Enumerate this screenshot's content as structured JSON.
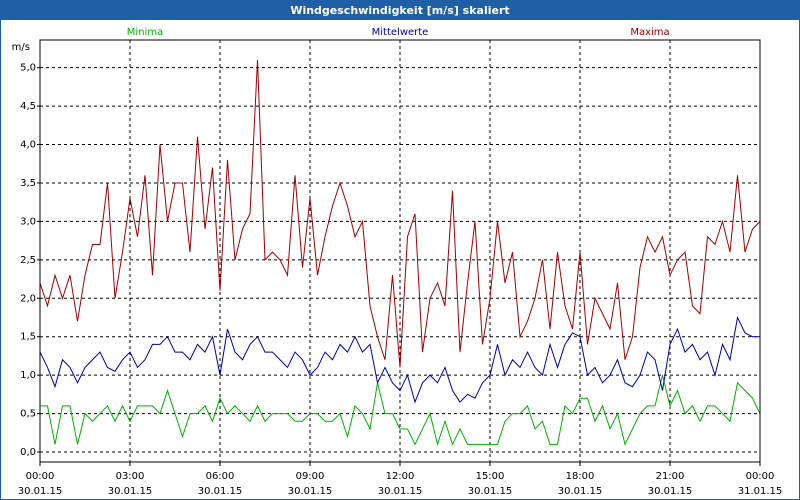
{
  "chart_data": {
    "type": "line",
    "title": "Windgeschwindigkeit [m/s] skaliert",
    "y_label": "m/s",
    "x": [
      0,
      0.25,
      0.5,
      0.75,
      1,
      1.25,
      1.5,
      1.75,
      2,
      2.25,
      2.5,
      2.75,
      3,
      3.25,
      3.5,
      3.75,
      4,
      4.25,
      4.5,
      4.75,
      5,
      5.25,
      5.5,
      5.75,
      6,
      6.25,
      6.5,
      6.75,
      7,
      7.25,
      7.5,
      7.75,
      8,
      8.25,
      8.5,
      8.75,
      9,
      9.25,
      9.5,
      9.75,
      10,
      10.25,
      10.5,
      10.75,
      11,
      11.25,
      11.5,
      11.75,
      12,
      12.25,
      12.5,
      12.75,
      13,
      13.25,
      13.5,
      13.75,
      14,
      14.25,
      14.5,
      14.75,
      15,
      15.25,
      15.5,
      15.75,
      16,
      16.25,
      16.5,
      16.75,
      17,
      17.25,
      17.5,
      17.75,
      18,
      18.25,
      18.5,
      18.75,
      19,
      19.25,
      19.5,
      19.75,
      20,
      20.25,
      20.5,
      20.75,
      21,
      21.25,
      21.5,
      21.75,
      22,
      22.25,
      22.5,
      22.75,
      23,
      23.25,
      23.5,
      23.75,
      24
    ],
    "series": [
      {
        "name": "Minima",
        "color": "#00b000",
        "values": [
          0.6,
          0.6,
          0.1,
          0.6,
          0.6,
          0.1,
          0.5,
          0.4,
          0.5,
          0.6,
          0.4,
          0.6,
          0.4,
          0.6,
          0.6,
          0.6,
          0.5,
          0.8,
          0.5,
          0.2,
          0.5,
          0.5,
          0.6,
          0.4,
          0.7,
          0.5,
          0.6,
          0.5,
          0.4,
          0.6,
          0.4,
          0.5,
          0.5,
          0.5,
          0.4,
          0.4,
          0.5,
          0.5,
          0.4,
          0.4,
          0.5,
          0.2,
          0.6,
          0.5,
          0.3,
          0.9,
          0.5,
          0.5,
          0.3,
          0.3,
          0.1,
          0.3,
          0.5,
          0.1,
          0.4,
          0.1,
          0.3,
          0.1,
          0.1,
          0.1,
          0.1,
          0.1,
          0.4,
          0.5,
          0.5,
          0.6,
          0.3,
          0.4,
          0.1,
          0.1,
          0.6,
          0.5,
          0.7,
          0.7,
          0.4,
          0.6,
          0.3,
          0.5,
          0.1,
          0.3,
          0.5,
          0.6,
          0.6,
          1.0,
          0.6,
          0.8,
          0.5,
          0.6,
          0.4,
          0.6,
          0.6,
          0.5,
          0.4,
          0.9,
          0.8,
          0.7,
          0.5
        ]
      },
      {
        "name": "Mittelwerte",
        "color": "#0000a0",
        "values": [
          1.3,
          1.1,
          0.85,
          1.2,
          1.1,
          0.9,
          1.1,
          1.2,
          1.3,
          1.1,
          1.05,
          1.2,
          1.3,
          1.1,
          1.2,
          1.4,
          1.4,
          1.5,
          1.3,
          1.3,
          1.2,
          1.4,
          1.3,
          1.5,
          1.0,
          1.6,
          1.3,
          1.2,
          1.4,
          1.5,
          1.3,
          1.3,
          1.2,
          1.1,
          1.3,
          1.2,
          1.0,
          1.1,
          1.3,
          1.2,
          1.4,
          1.3,
          1.5,
          1.3,
          1.4,
          0.9,
          1.1,
          0.9,
          0.8,
          1.0,
          0.65,
          0.9,
          1.0,
          0.9,
          1.1,
          0.8,
          0.65,
          0.75,
          0.7,
          0.9,
          1.0,
          1.4,
          1.0,
          1.2,
          1.1,
          1.3,
          1.1,
          1.0,
          1.4,
          1.1,
          1.4,
          1.55,
          1.5,
          1.0,
          1.1,
          0.9,
          1.0,
          1.2,
          0.9,
          0.85,
          1.0,
          1.3,
          1.2,
          0.8,
          1.4,
          1.6,
          1.3,
          1.4,
          1.2,
          1.3,
          1.0,
          1.4,
          1.2,
          1.75,
          1.55,
          1.5,
          1.5
        ]
      },
      {
        "name": "Maxima",
        "color": "#a00000",
        "values": [
          2.2,
          1.9,
          2.3,
          2.0,
          2.3,
          1.7,
          2.3,
          2.7,
          2.7,
          3.5,
          2.0,
          2.6,
          3.3,
          2.8,
          3.6,
          2.3,
          4.0,
          3.0,
          3.5,
          3.5,
          2.6,
          4.1,
          2.9,
          3.7,
          2.1,
          3.8,
          2.5,
          2.9,
          3.1,
          5.1,
          2.5,
          2.6,
          2.5,
          2.3,
          3.6,
          2.4,
          3.3,
          2.3,
          2.8,
          3.2,
          3.5,
          3.2,
          2.8,
          3.0,
          1.9,
          1.5,
          1.2,
          2.3,
          1.1,
          2.8,
          3.1,
          1.3,
          2.0,
          2.2,
          1.9,
          3.4,
          1.3,
          2.2,
          3.0,
          1.4,
          2.0,
          3.0,
          2.2,
          2.6,
          1.5,
          1.7,
          2.0,
          2.5,
          1.6,
          2.6,
          1.9,
          1.6,
          2.6,
          1.4,
          2.0,
          1.8,
          1.6,
          2.2,
          1.2,
          1.5,
          2.4,
          2.8,
          2.6,
          2.8,
          2.3,
          2.5,
          2.6,
          1.9,
          1.8,
          2.8,
          2.7,
          3.0,
          2.6,
          3.6,
          2.6,
          2.9,
          3.0
        ]
      }
    ],
    "xlim": [
      0,
      24
    ],
    "xticks": [
      {
        "value": 0,
        "label": "00:00",
        "date": "30.01.15"
      },
      {
        "value": 3,
        "label": "03:00",
        "date": "30.01.15"
      },
      {
        "value": 6,
        "label": "06:00",
        "date": "30.01.15"
      },
      {
        "value": 9,
        "label": "09:00",
        "date": "30.01.15"
      },
      {
        "value": 12,
        "label": "12:00",
        "date": "30.01.15"
      },
      {
        "value": 15,
        "label": "15:00",
        "date": "30.01.15"
      },
      {
        "value": 18,
        "label": "18:00",
        "date": "30.01.15"
      },
      {
        "value": 21,
        "label": "21:00",
        "date": "30.01.15"
      },
      {
        "value": 24,
        "label": "00:00",
        "date": "31.01.15"
      }
    ],
    "ylim": [
      -0.13,
      5.36
    ],
    "yticks": [
      {
        "value": 0,
        "label": "0,0"
      },
      {
        "value": 0.5,
        "label": "0,5"
      },
      {
        "value": 1,
        "label": "1,0"
      },
      {
        "value": 1.5,
        "label": "1,5"
      },
      {
        "value": 2,
        "label": "2,0"
      },
      {
        "value": 2.5,
        "label": "2,5"
      },
      {
        "value": 3,
        "label": "3,0"
      },
      {
        "value": 3.5,
        "label": "3,5"
      },
      {
        "value": 4,
        "label": "4,0"
      },
      {
        "value": 4.5,
        "label": "4,5"
      },
      {
        "value": 5,
        "label": "5,0"
      }
    ],
    "grid": true
  }
}
